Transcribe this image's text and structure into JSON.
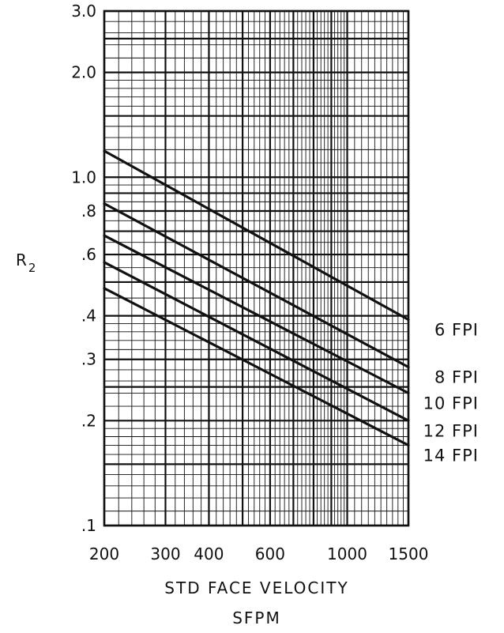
{
  "chart_data": {
    "type": "line",
    "title": "",
    "xlabel": "STD FACE VELOCITY",
    "xlabel_sub": "SFPM",
    "ylabel": "R",
    "ylabel_subscript": "2",
    "x_scale": "log",
    "y_scale": "log",
    "xlim": [
      200,
      1500
    ],
    "ylim": [
      0.1,
      3.0
    ],
    "grid": true,
    "x_ticks": [
      {
        "value": 200,
        "label": "200"
      },
      {
        "value": 300,
        "label": "300"
      },
      {
        "value": 400,
        "label": "400"
      },
      {
        "value": 600,
        "label": "600"
      },
      {
        "value": 1000,
        "label": "1000"
      },
      {
        "value": 1500,
        "label": "1500"
      }
    ],
    "y_ticks": [
      {
        "value": 0.1,
        "label": ".1"
      },
      {
        "value": 0.2,
        "label": ".2"
      },
      {
        "value": 0.3,
        "label": ".3"
      },
      {
        "value": 0.4,
        "label": ".4"
      },
      {
        "value": 0.6,
        "label": ".6"
      },
      {
        "value": 0.8,
        "label": ".8"
      },
      {
        "value": 1.0,
        "label": "1.0"
      },
      {
        "value": 2.0,
        "label": "2.0"
      },
      {
        "value": 3.0,
        "label": "3.0"
      }
    ],
    "series": [
      {
        "name": "6 FPI",
        "x": [
          200,
          1500
        ],
        "y": [
          1.19,
          0.39
        ]
      },
      {
        "name": "8 FPI",
        "x": [
          200,
          1500
        ],
        "y": [
          0.84,
          0.285
        ]
      },
      {
        "name": "10 FPI",
        "x": [
          200,
          1500
        ],
        "y": [
          0.68,
          0.24
        ]
      },
      {
        "name": "12 FPI",
        "x": [
          200,
          1500
        ],
        "y": [
          0.57,
          0.2
        ]
      },
      {
        "name": "14 FPI",
        "x": [
          200,
          1500
        ],
        "y": [
          0.48,
          0.17
        ]
      }
    ],
    "line_color": "#111111",
    "grid_color": "#111111"
  }
}
